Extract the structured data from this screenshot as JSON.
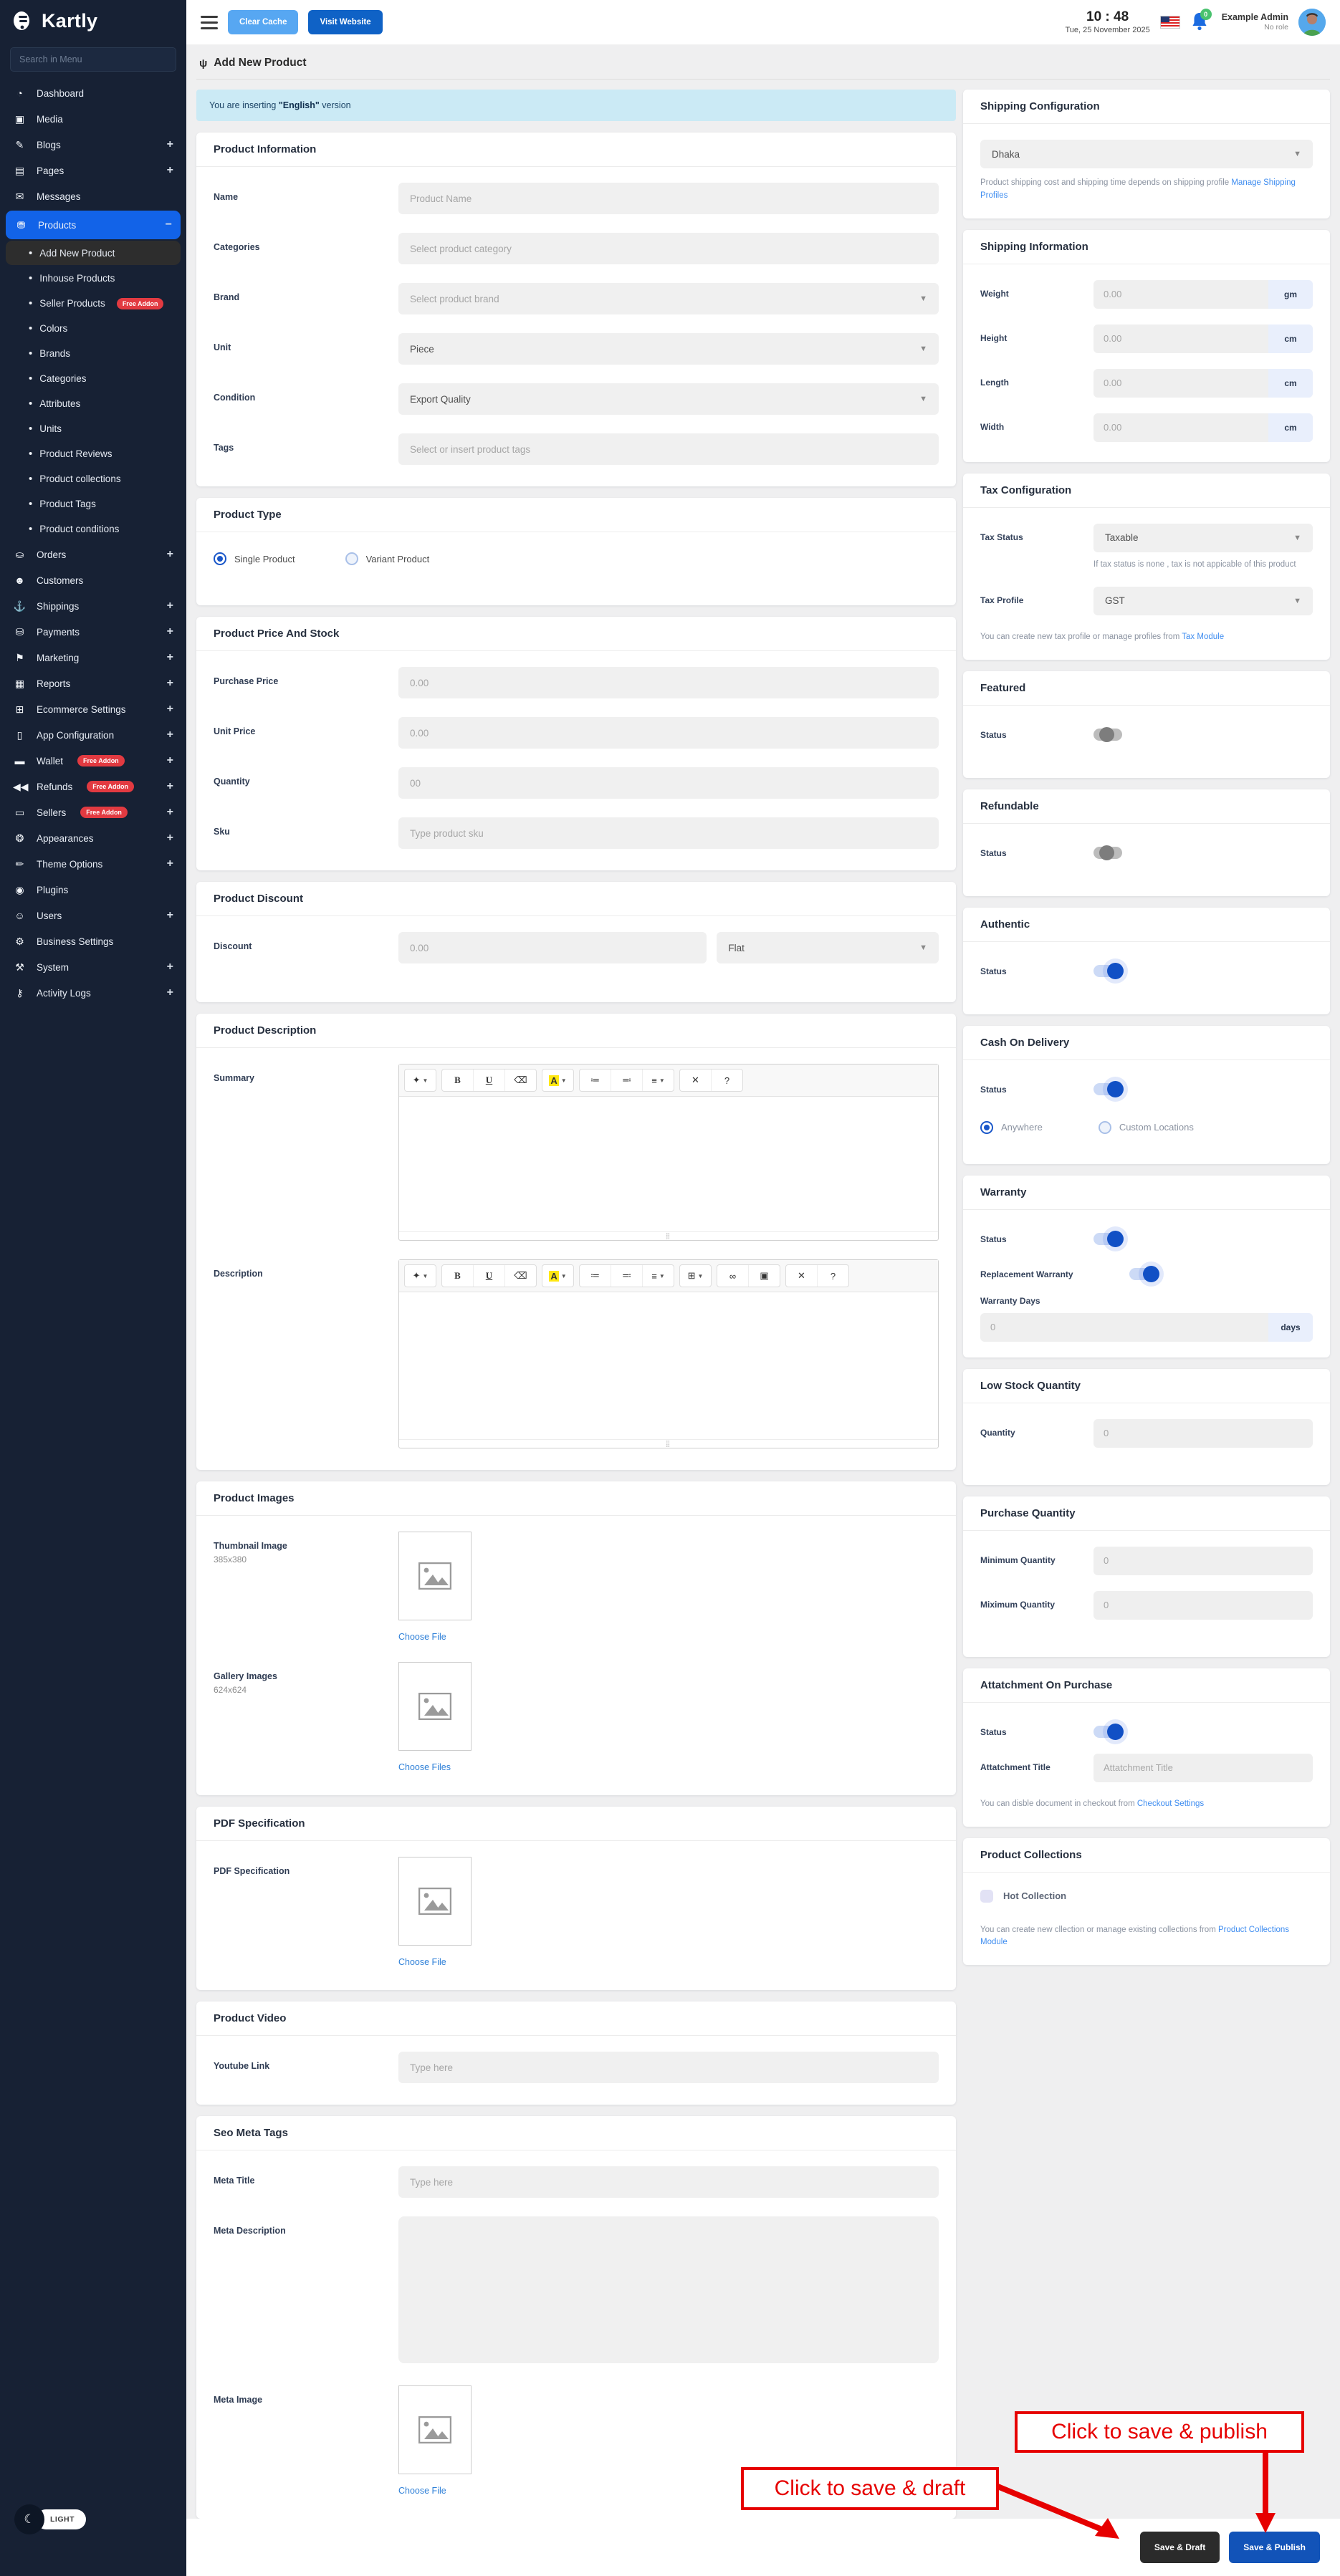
{
  "sidebar": {
    "logo": "Kartly",
    "search_placeholder": "Search in Menu",
    "theme_toggle": "LIGHT",
    "items": [
      {
        "name": "dashboard",
        "glyph": "◔",
        "label": "Dashboard"
      },
      {
        "name": "media",
        "glyph": "▣",
        "label": "Media"
      },
      {
        "name": "blogs",
        "glyph": "✎",
        "label": "Blogs",
        "expand": "+"
      },
      {
        "name": "pages",
        "glyph": "▤",
        "label": "Pages",
        "expand": "+"
      },
      {
        "name": "messages",
        "glyph": "✉",
        "label": "Messages"
      },
      {
        "name": "products",
        "glyph": "⛃",
        "label": "Products",
        "expand": "−",
        "active": true,
        "children": [
          {
            "name": "add-new-product",
            "label": "Add New Product",
            "active": true
          },
          {
            "name": "inhouse-products",
            "label": "Inhouse Products"
          },
          {
            "name": "seller-products",
            "label": "Seller Products",
            "badge": "Free Addon"
          },
          {
            "name": "colors",
            "label": "Colors"
          },
          {
            "name": "brands",
            "label": "Brands"
          },
          {
            "name": "categories",
            "label": "Categories"
          },
          {
            "name": "attributes",
            "label": "Attributes"
          },
          {
            "name": "units",
            "label": "Units"
          },
          {
            "name": "product-reviews",
            "label": "Product Reviews"
          },
          {
            "name": "product-collections",
            "label": "Product collections"
          },
          {
            "name": "product-tags",
            "label": "Product Tags"
          },
          {
            "name": "product-conditions",
            "label": "Product conditions"
          }
        ]
      },
      {
        "name": "orders",
        "glyph": "⛀",
        "label": "Orders",
        "expand": "+"
      },
      {
        "name": "customers",
        "glyph": "☻",
        "label": "Customers"
      },
      {
        "name": "shippings",
        "glyph": "⚓",
        "label": "Shippings",
        "expand": "+"
      },
      {
        "name": "payments",
        "glyph": "⛁",
        "label": "Payments",
        "expand": "+"
      },
      {
        "name": "marketing",
        "glyph": "⚑",
        "label": "Marketing",
        "expand": "+"
      },
      {
        "name": "reports",
        "glyph": "▦",
        "label": "Reports",
        "expand": "+"
      },
      {
        "name": "ecommerce-settings",
        "glyph": "⊞",
        "label": "Ecommerce Settings",
        "expand": "+"
      },
      {
        "name": "app-configuration",
        "glyph": "▯",
        "label": "App Configuration",
        "expand": "+"
      },
      {
        "name": "wallet",
        "glyph": "▬",
        "label": "Wallet",
        "badge": "Free Addon",
        "expand": "+"
      },
      {
        "name": "refunds",
        "glyph": "◀◀",
        "label": "Refunds",
        "badge": "Free Addon",
        "expand": "+"
      },
      {
        "name": "sellers",
        "glyph": "▭",
        "label": "Sellers",
        "badge": "Free Addon",
        "expand": "+"
      },
      {
        "name": "appearances",
        "glyph": "❂",
        "label": "Appearances",
        "expand": "+"
      },
      {
        "name": "theme-options",
        "glyph": "✏",
        "label": "Theme Options",
        "expand": "+"
      },
      {
        "name": "plugins",
        "glyph": "◉",
        "label": "Plugins"
      },
      {
        "name": "users",
        "glyph": "☺",
        "label": "Users",
        "expand": "+"
      },
      {
        "name": "business-settings",
        "glyph": "⚙",
        "label": "Business Settings"
      },
      {
        "name": "system",
        "glyph": "⚒",
        "label": "System",
        "expand": "+"
      },
      {
        "name": "activity-logs",
        "glyph": "⚷",
        "label": "Activity Logs",
        "expand": "+"
      }
    ]
  },
  "topbar": {
    "clear_cache": "Clear Cache",
    "visit_website": "Visit Website",
    "time": "10 : 48",
    "date": "Tue, 25 November 2025",
    "notification_count": "0",
    "admin_name": "Example Admin",
    "admin_role": "No role"
  },
  "page": {
    "title": "Add New Product"
  },
  "notice": {
    "prefix": "You are inserting ",
    "highlight": "\"English\"",
    "suffix": " version"
  },
  "left": {
    "product_information": {
      "title": "Product Information",
      "name": {
        "label": "Name",
        "placeholder": "Product Name"
      },
      "categories": {
        "label": "Categories",
        "placeholder": "Select product category"
      },
      "brand": {
        "label": "Brand",
        "placeholder": "Select product brand"
      },
      "unit": {
        "label": "Unit",
        "value": "Piece"
      },
      "condition": {
        "label": "Condition",
        "value": "Export Quality"
      },
      "tags": {
        "label": "Tags",
        "placeholder": "Select or insert product tags"
      }
    },
    "product_type": {
      "title": "Product Type",
      "single": "Single Product",
      "variant": "Variant Product"
    },
    "price_stock": {
      "title": "Product Price And Stock",
      "purchase_price": {
        "label": "Purchase Price",
        "placeholder": "0.00"
      },
      "unit_price": {
        "label": "Unit Price",
        "placeholder": "0.00"
      },
      "quantity": {
        "label": "Quantity",
        "placeholder": "00"
      },
      "sku": {
        "label": "Sku",
        "placeholder": "Type product sku"
      }
    },
    "discount": {
      "title": "Product Discount",
      "label": "Discount",
      "placeholder": "0.00",
      "type_value": "Flat"
    },
    "description": {
      "title": "Product Description",
      "summary_label": "Summary",
      "description_label": "Description"
    },
    "images": {
      "title": "Product Images",
      "thumbnail": {
        "label": "Thumbnail Image",
        "size": "385x380",
        "choose": "Choose File"
      },
      "gallery": {
        "label": "Gallery Images",
        "size": "624x624",
        "choose": "Choose Files"
      }
    },
    "pdf": {
      "title": "PDF Specification",
      "label": "PDF Specification",
      "choose": "Choose File"
    },
    "video": {
      "title": "Product Video",
      "label": "Youtube Link",
      "placeholder": "Type here"
    },
    "seo": {
      "title": "Seo Meta Tags",
      "meta_title": {
        "label": "Meta Title",
        "placeholder": "Type here"
      },
      "meta_description": {
        "label": "Meta Description"
      },
      "meta_image": {
        "label": "Meta Image",
        "choose": "Choose File"
      }
    }
  },
  "right": {
    "shipping_config": {
      "title": "Shipping Configuration",
      "value": "Dhaka",
      "note": "Product shipping cost and shipping time depends on shipping profile ",
      "link": "Manage Shipping Profiles"
    },
    "shipping_info": {
      "title": "Shipping Information",
      "rows": [
        {
          "label": "Weight",
          "placeholder": "0.00",
          "unit": "gm"
        },
        {
          "label": "Height",
          "placeholder": "0.00",
          "unit": "cm"
        },
        {
          "label": "Length",
          "placeholder": "0.00",
          "unit": "cm"
        },
        {
          "label": "Width",
          "placeholder": "0.00",
          "unit": "cm"
        }
      ]
    },
    "tax": {
      "title": "Tax Configuration",
      "status_label": "Tax Status",
      "status_value": "Taxable",
      "status_hint": "If tax status is none , tax is not appicable of this product",
      "profile_label": "Tax Profile",
      "profile_value": "GST",
      "note": "You can create new tax profile or manage profiles from ",
      "link": "Tax Module"
    },
    "featured": {
      "title": "Featured",
      "status_label": "Status"
    },
    "refundable": {
      "title": "Refundable",
      "status_label": "Status"
    },
    "authentic": {
      "title": "Authentic",
      "status_label": "Status"
    },
    "cod": {
      "title": "Cash On Delivery",
      "status_label": "Status",
      "anywhere": "Anywhere",
      "custom": "Custom Locations"
    },
    "warranty": {
      "title": "Warranty",
      "status_label": "Status",
      "replacement_label": "Replacement Warranty",
      "days_label": "Warranty Days",
      "placeholder": "0",
      "unit": "days"
    },
    "low_stock": {
      "title": "Low Stock Quantity",
      "label": "Quantity",
      "placeholder": "0"
    },
    "purchase_qty": {
      "title": "Purchase Quantity",
      "min_label": "Minimum Quantity",
      "max_label": "Miximum Quantity",
      "placeholder": "0"
    },
    "attachment": {
      "title": "Attatchment On Purchase",
      "status_label": "Status",
      "title_label": "Attatchment Title",
      "placeholder": "Attatchment Title",
      "note": "You can disble document in checkout from ",
      "link": "Checkout Settings"
    },
    "collections": {
      "title": "Product Collections",
      "checkbox": "Hot Collection",
      "note": "You can create new cllection or manage existing collections from ",
      "link": "Product Collections Module"
    }
  },
  "editor": {
    "tools": {
      "magic": {
        "name": "magic-wand-icon",
        "glyph": "✦",
        "caret": true
      },
      "bold": {
        "name": "bold-icon",
        "glyph": "B",
        "style": "b"
      },
      "underline": {
        "name": "underline-icon",
        "glyph": "U",
        "style": "u"
      },
      "eraser": {
        "name": "eraser-icon",
        "glyph": "⌫"
      },
      "color": {
        "name": "text-color-icon",
        "glyph": "A",
        "style": "hl",
        "caret": true
      },
      "ul": {
        "name": "unordered-list-icon",
        "glyph": "≔"
      },
      "ol": {
        "name": "ordered-list-icon",
        "glyph": "≕"
      },
      "align": {
        "name": "paragraph-align-icon",
        "glyph": "≡",
        "caret": true
      },
      "table": {
        "name": "table-icon",
        "glyph": "⊞",
        "caret": true
      },
      "link": {
        "name": "link-icon",
        "glyph": "∞"
      },
      "picture": {
        "name": "picture-icon",
        "glyph": "▣"
      },
      "fullscreen": {
        "name": "fullscreen-icon",
        "glyph": "✕"
      },
      "help": {
        "name": "help-icon",
        "glyph": "?"
      }
    },
    "summary_groups": [
      [
        "magic"
      ],
      [
        "bold",
        "underline",
        "eraser"
      ],
      [
        "color"
      ],
      [
        "ul",
        "ol",
        "align"
      ],
      [
        "fullscreen",
        "help"
      ]
    ],
    "description_groups": [
      [
        "magic"
      ],
      [
        "bold",
        "underline",
        "eraser"
      ],
      [
        "color"
      ],
      [
        "ul",
        "ol",
        "align"
      ],
      [
        "table"
      ],
      [
        "link",
        "picture"
      ],
      [
        "fullscreen",
        "help"
      ]
    ]
  },
  "footer": {
    "draft": "Save & Draft",
    "publish": "Save & Publish"
  },
  "annotations": {
    "draft": "Click to save & draft",
    "publish": "Click to save & publish"
  }
}
